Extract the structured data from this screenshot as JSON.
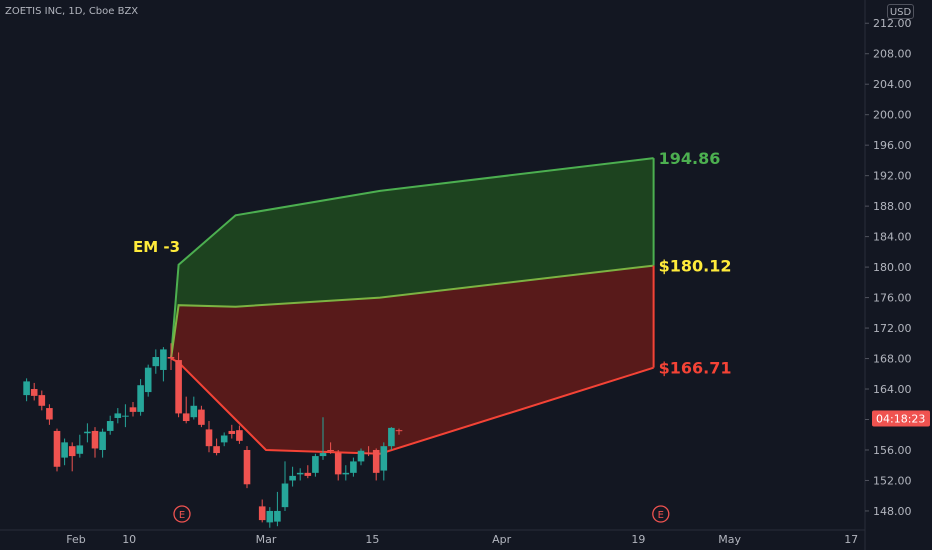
{
  "header": {
    "title": "ZOETIS INC, 1D, Cboe BZX",
    "currency": "USD"
  },
  "colors": {
    "background": "#131722",
    "up": "#26a69a",
    "down": "#ef5350",
    "upper_band": "#4caf50",
    "lower_band": "#f44336",
    "mid_label": "#ffeb3b",
    "axis_text": "#b2b5be",
    "countdown_bg": "#ef5350"
  },
  "chart_data": {
    "type": "candlestick",
    "y_range": [
      145.5,
      214
    ],
    "y_ticks": [
      "212.00",
      "208.00",
      "204.00",
      "200.00",
      "196.00",
      "192.00",
      "188.00",
      "184.00",
      "180.00",
      "176.00",
      "172.00",
      "168.00",
      "164.00",
      "160.00",
      "156.00",
      "152.00",
      "148.00"
    ],
    "x_ticks": [
      {
        "label": "Feb",
        "day": 0
      },
      {
        "label": "10",
        "day": 7
      },
      {
        "label": "Mar",
        "day": 25
      },
      {
        "label": "15",
        "day": 39
      },
      {
        "label": "Apr",
        "day": 56
      },
      {
        "label": "19",
        "day": 74
      },
      {
        "label": "May",
        "day": 86
      },
      {
        "label": "17",
        "day": 102
      }
    ],
    "earnings_markers": [
      {
        "label": "E",
        "day": 10
      },
      {
        "label": "E",
        "day": 73
      }
    ],
    "annotation": "EM -3",
    "countdown": "04:18:23",
    "band_start_day": 12.5,
    "expected_move": {
      "upper": [
        {
          "day": 12.5,
          "value": 168.0
        },
        {
          "day": 13.5,
          "value": 180.3
        },
        {
          "day": 21,
          "value": 186.8
        },
        {
          "day": 40,
          "value": 190.0
        },
        {
          "day": 76,
          "value": 194.3
        }
      ],
      "mid": [
        {
          "day": 12.5,
          "value": 168.0
        },
        {
          "day": 13.5,
          "value": 175.0
        },
        {
          "day": 21,
          "value": 174.8
        },
        {
          "day": 40,
          "value": 176.0
        },
        {
          "day": 76,
          "value": 180.2
        }
      ],
      "lower": [
        {
          "day": 12.5,
          "value": 168.0
        },
        {
          "day": 13.5,
          "value": 167.5
        },
        {
          "day": 21,
          "value": 160.0
        },
        {
          "day": 25,
          "value": 156.0
        },
        {
          "day": 40,
          "value": 155.5
        },
        {
          "day": 76,
          "value": 166.8
        }
      ]
    },
    "band_labels": {
      "upper": "194.86",
      "mid": "$180.12",
      "lower": "$166.71"
    },
    "candles": [
      {
        "day": -6.5,
        "o": 163.2,
        "h": 165.4,
        "l": 162.4,
        "c": 165.0
      },
      {
        "day": -5.5,
        "o": 164.0,
        "h": 164.8,
        "l": 162.5,
        "c": 163.1
      },
      {
        "day": -4.5,
        "o": 163.2,
        "h": 163.8,
        "l": 161.2,
        "c": 161.8
      },
      {
        "day": -3.5,
        "o": 161.5,
        "h": 162.0,
        "l": 159.3,
        "c": 160.0
      },
      {
        "day": -2.5,
        "o": 158.5,
        "h": 158.8,
        "l": 153.2,
        "c": 153.8
      },
      {
        "day": -1.5,
        "o": 155.0,
        "h": 157.5,
        "l": 154.0,
        "c": 157.0
      },
      {
        "day": -0.5,
        "o": 156.5,
        "h": 157.0,
        "l": 153.2,
        "c": 155.2
      },
      {
        "day": 0.5,
        "o": 155.5,
        "h": 158.0,
        "l": 155.0,
        "c": 156.6
      },
      {
        "day": 1.5,
        "o": 158.2,
        "h": 159.5,
        "l": 157.0,
        "c": 158.4
      },
      {
        "day": 2.5,
        "o": 158.5,
        "h": 159.0,
        "l": 155.0,
        "c": 156.2
      },
      {
        "day": 3.5,
        "o": 156.0,
        "h": 158.8,
        "l": 155.0,
        "c": 158.4
      },
      {
        "day": 4.5,
        "o": 158.5,
        "h": 160.5,
        "l": 158.0,
        "c": 159.8
      },
      {
        "day": 5.5,
        "o": 160.2,
        "h": 161.5,
        "l": 159.5,
        "c": 160.8
      },
      {
        "day": 6.5,
        "o": 160.5,
        "h": 162.0,
        "l": 159.0,
        "c": 160.5
      },
      {
        "day": 7.5,
        "o": 161.6,
        "h": 162.3,
        "l": 160.4,
        "c": 161.0
      },
      {
        "day": 8.5,
        "o": 161.0,
        "h": 165.3,
        "l": 160.5,
        "c": 164.5
      },
      {
        "day": 9.5,
        "o": 163.6,
        "h": 167.2,
        "l": 163.0,
        "c": 166.8
      },
      {
        "day": 10.5,
        "o": 167.0,
        "h": 169.2,
        "l": 166.0,
        "c": 168.2
      },
      {
        "day": 11.5,
        "o": 166.5,
        "h": 169.5,
        "l": 165.0,
        "c": 169.2
      },
      {
        "day": 12.5,
        "o": 168.2,
        "h": 170.0,
        "l": 166.5,
        "c": 168.0
      },
      {
        "day": 13.5,
        "o": 167.8,
        "h": 168.8,
        "l": 160.3,
        "c": 160.8
      },
      {
        "day": 14.5,
        "o": 160.8,
        "h": 163.0,
        "l": 159.5,
        "c": 159.8
      },
      {
        "day": 15.5,
        "o": 160.3,
        "h": 163.0,
        "l": 160.0,
        "c": 161.8
      },
      {
        "day": 16.5,
        "o": 161.3,
        "h": 161.8,
        "l": 159.0,
        "c": 159.3
      },
      {
        "day": 17.5,
        "o": 158.7,
        "h": 159.8,
        "l": 155.7,
        "c": 156.5
      },
      {
        "day": 18.5,
        "o": 156.5,
        "h": 157.5,
        "l": 155.3,
        "c": 155.6
      },
      {
        "day": 19.5,
        "o": 157.0,
        "h": 158.3,
        "l": 156.5,
        "c": 157.9
      },
      {
        "day": 20.5,
        "o": 158.5,
        "h": 159.3,
        "l": 157.5,
        "c": 158.1
      },
      {
        "day": 21.5,
        "o": 158.6,
        "h": 159.2,
        "l": 156.8,
        "c": 157.2
      },
      {
        "day": 22.5,
        "o": 156.0,
        "h": 156.5,
        "l": 151.0,
        "c": 151.5
      },
      {
        "day": 24.5,
        "o": 148.6,
        "h": 149.5,
        "l": 146.5,
        "c": 146.8
      },
      {
        "day": 25.5,
        "o": 146.5,
        "h": 148.5,
        "l": 145.8,
        "c": 148.0
      },
      {
        "day": 26.5,
        "o": 146.6,
        "h": 150.5,
        "l": 146.0,
        "c": 148.0
      },
      {
        "day": 27.5,
        "o": 148.5,
        "h": 154.5,
        "l": 148.0,
        "c": 151.6
      },
      {
        "day": 28.5,
        "o": 152.0,
        "h": 153.8,
        "l": 151.2,
        "c": 152.6
      },
      {
        "day": 29.5,
        "o": 152.8,
        "h": 153.6,
        "l": 152.0,
        "c": 153.0
      },
      {
        "day": 30.5,
        "o": 153.0,
        "h": 154.0,
        "l": 152.3,
        "c": 152.6
      },
      {
        "day": 31.5,
        "o": 153.0,
        "h": 155.5,
        "l": 152.5,
        "c": 155.2
      },
      {
        "day": 32.5,
        "o": 155.2,
        "h": 160.3,
        "l": 154.7,
        "c": 155.6
      },
      {
        "day": 33.5,
        "o": 156.0,
        "h": 157.0,
        "l": 155.5,
        "c": 155.9
      },
      {
        "day": 34.5,
        "o": 155.6,
        "h": 156.0,
        "l": 152.0,
        "c": 152.8
      },
      {
        "day": 35.5,
        "o": 152.8,
        "h": 154.0,
        "l": 152.0,
        "c": 153.0
      },
      {
        "day": 36.5,
        "o": 153.0,
        "h": 155.0,
        "l": 152.5,
        "c": 154.5
      },
      {
        "day": 37.5,
        "o": 154.5,
        "h": 156.2,
        "l": 154.0,
        "c": 155.9
      },
      {
        "day": 38.5,
        "o": 155.6,
        "h": 156.5,
        "l": 155.2,
        "c": 155.5
      },
      {
        "day": 39.5,
        "o": 156.0,
        "h": 156.2,
        "l": 152.0,
        "c": 153.0
      },
      {
        "day": 40.5,
        "o": 153.3,
        "h": 157.0,
        "l": 152.0,
        "c": 156.5
      },
      {
        "day": 41.5,
        "o": 156.5,
        "h": 159.0,
        "l": 156.0,
        "c": 158.9
      },
      {
        "day": 42.5,
        "o": 158.6,
        "h": 158.8,
        "l": 158.0,
        "c": 158.5
      }
    ]
  }
}
